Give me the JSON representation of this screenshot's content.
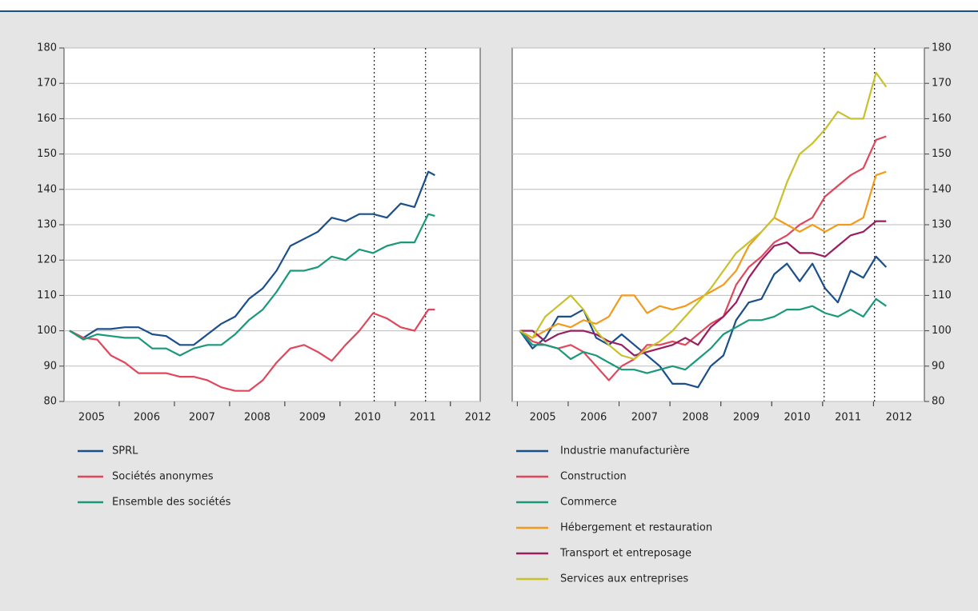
{
  "chart_data": [
    {
      "type": "line",
      "x": [
        2005.1,
        2005.35,
        2005.6,
        2005.85,
        2006.1,
        2006.35,
        2006.6,
        2006.85,
        2007.1,
        2007.35,
        2007.6,
        2007.85,
        2008.1,
        2008.35,
        2008.6,
        2008.85,
        2009.1,
        2009.35,
        2009.6,
        2009.85,
        2010.1,
        2010.35,
        2010.6,
        2010.85,
        2011.1,
        2011.35,
        2011.6,
        2011.72
      ],
      "series": [
        {
          "name": "SPRL",
          "color": "#1b4f8c",
          "values": [
            100,
            98,
            100.5,
            100.5,
            101,
            101,
            99,
            98.5,
            96,
            96,
            99,
            102,
            104,
            109,
            112,
            117,
            124,
            126,
            128,
            132,
            131,
            133,
            133,
            132,
            136,
            135,
            145,
            144
          ]
        },
        {
          "name": "Sociétés anonymes",
          "color": "#e0475b",
          "values": [
            100,
            98,
            97.5,
            93,
            91,
            88,
            88,
            88,
            87,
            87,
            86,
            84,
            83,
            83,
            86,
            91,
            95,
            96,
            94,
            91.5,
            96,
            100,
            105,
            103.5,
            101,
            100,
            106,
            106
          ]
        },
        {
          "name": "Ensemble des sociétés",
          "color": "#1a987a",
          "values": [
            100,
            97.5,
            99,
            98.5,
            98,
            98,
            95,
            95,
            93,
            95,
            96,
            96,
            99,
            103,
            106,
            111,
            117,
            117,
            118,
            121,
            120,
            123,
            122,
            124,
            125,
            125,
            133,
            132.5
          ]
        }
      ],
      "xlim": [
        2005,
        2012.54
      ],
      "xticks": [
        {
          "value": 2005.5,
          "label": "2005"
        },
        {
          "value": 2006.5,
          "label": "2006"
        },
        {
          "value": 2007.5,
          "label": "2007"
        },
        {
          "value": 2008.5,
          "label": "2008"
        },
        {
          "value": 2009.5,
          "label": "2009"
        },
        {
          "value": 2010.5,
          "label": "2010"
        },
        {
          "value": 2011.5,
          "label": "2011"
        },
        {
          "value": 2012.5,
          "label": "2012"
        }
      ],
      "ylim": [
        80,
        180
      ],
      "yticks": [
        80,
        90,
        100,
        110,
        120,
        130,
        140,
        150,
        160,
        170,
        180
      ],
      "vlines": [
        2010.62,
        2011.55
      ],
      "grid": true,
      "yaxis": "left"
    },
    {
      "type": "line",
      "x": [
        2005.05,
        2005.3,
        2005.55,
        2005.8,
        2006.05,
        2006.3,
        2006.55,
        2006.8,
        2007.05,
        2007.3,
        2007.55,
        2007.8,
        2008.05,
        2008.3,
        2008.55,
        2008.8,
        2009.05,
        2009.3,
        2009.55,
        2009.8,
        2010.05,
        2010.3,
        2010.55,
        2010.8,
        2011.05,
        2011.3,
        2011.55,
        2011.8,
        2012.05,
        2012.25
      ],
      "series": [
        {
          "name": "Industrie manufacturière",
          "color": "#1b4f8c",
          "values": [
            100,
            95,
            98,
            104,
            104,
            106,
            98,
            96,
            99,
            96,
            93,
            90,
            85,
            85,
            84,
            90,
            93,
            103,
            108,
            109,
            116,
            119,
            114,
            119,
            112,
            108,
            117,
            115,
            121,
            118
          ]
        },
        {
          "name": "Construction",
          "color": "#e0475b",
          "values": [
            100,
            97,
            96,
            95,
            96,
            94,
            90,
            86,
            90,
            92,
            96,
            96,
            97,
            96,
            99,
            102,
            104,
            113,
            118,
            121,
            125,
            127,
            130,
            132,
            138,
            141,
            144,
            146,
            154,
            155
          ]
        },
        {
          "name": "Commerce",
          "color": "#1a987a",
          "values": [
            100,
            96,
            96,
            95,
            92,
            94,
            93,
            91,
            89,
            89,
            88,
            89,
            90,
            89,
            92,
            95,
            99,
            101,
            103,
            103,
            104,
            106,
            106,
            107,
            105,
            104,
            106,
            104,
            109,
            107
          ]
        },
        {
          "name": "Hébergement et restauration",
          "color": "#f29a1b",
          "values": [
            100,
            98,
            100,
            102,
            101,
            103,
            102,
            104,
            110,
            110,
            105,
            107,
            106,
            107,
            109,
            111,
            113,
            117,
            124,
            128,
            132,
            130,
            128,
            130,
            128,
            130,
            130,
            132,
            144,
            145
          ]
        },
        {
          "name": "Transport et entreposage",
          "color": "#9a1e5f",
          "values": [
            100,
            100,
            97,
            99,
            100,
            100,
            99,
            97,
            96,
            93,
            94,
            95,
            96,
            98,
            96,
            101,
            104,
            108,
            115,
            120,
            124,
            125,
            122,
            122,
            121,
            124,
            127,
            128,
            131,
            131
          ]
        },
        {
          "name": "Services aux entreprises",
          "color": "#c8c12d",
          "values": [
            100,
            98,
            104,
            107,
            110,
            106,
            100,
            96,
            93,
            92,
            95,
            97,
            100,
            104,
            108,
            112,
            117,
            122,
            125,
            128,
            132,
            142,
            150,
            153,
            157,
            162,
            160,
            160,
            173,
            169
          ]
        }
      ],
      "xlim": [
        2004.9,
        2013.0
      ],
      "xticks": [
        {
          "value": 2005.5,
          "label": "2005"
        },
        {
          "value": 2006.5,
          "label": "2006"
        },
        {
          "value": 2007.5,
          "label": "2007"
        },
        {
          "value": 2008.5,
          "label": "2008"
        },
        {
          "value": 2009.5,
          "label": "2009"
        },
        {
          "value": 2010.5,
          "label": "2010"
        },
        {
          "value": 2011.5,
          "label": "2011"
        },
        {
          "value": 2012.5,
          "label": "2012"
        }
      ],
      "ylim": [
        80,
        180
      ],
      "yticks": [
        80,
        90,
        100,
        110,
        120,
        130,
        140,
        150,
        160,
        170,
        180
      ],
      "vlines": [
        2011.03,
        2012.02
      ],
      "grid": true,
      "yaxis": "right"
    }
  ]
}
